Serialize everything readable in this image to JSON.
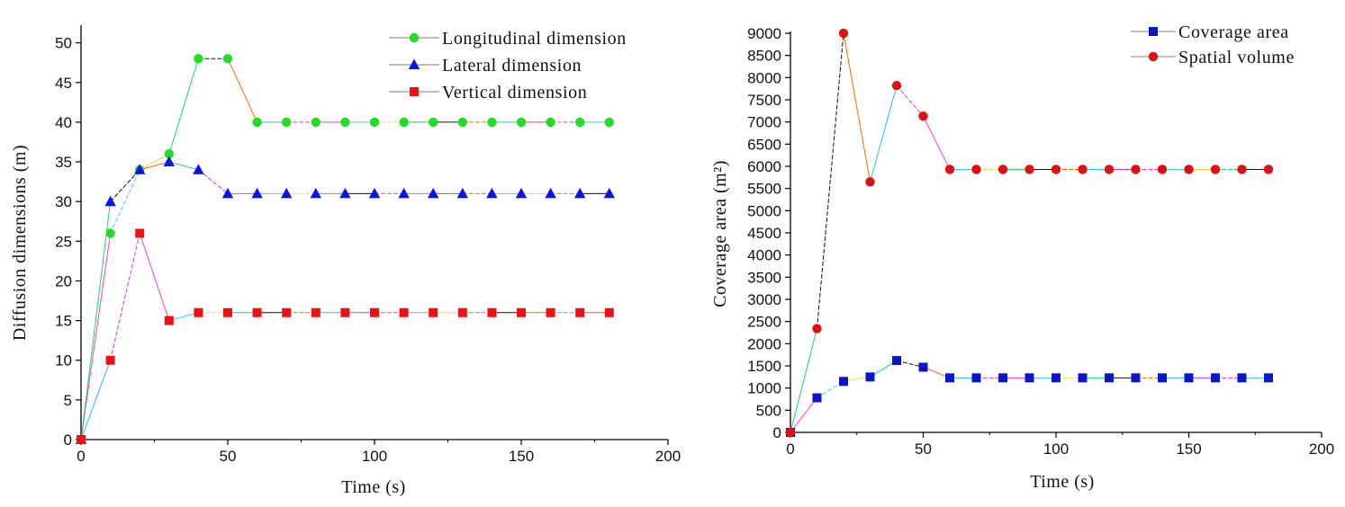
{
  "chart_data": [
    {
      "type": "line",
      "title": "",
      "xlabel": "Time (s)",
      "ylabel": "Diffusion dimensions (m)",
      "xlim": [
        0,
        200
      ],
      "ylim": [
        0,
        52
      ],
      "xticks": [
        0,
        50,
        100,
        150,
        200
      ],
      "yticks": [
        0,
        5,
        10,
        15,
        20,
        25,
        30,
        35,
        40,
        45,
        50
      ],
      "grid": false,
      "legend_position": "top-right",
      "x": [
        0,
        10,
        20,
        30,
        40,
        50,
        60,
        70,
        80,
        90,
        100,
        110,
        120,
        130,
        140,
        150,
        160,
        170,
        180
      ],
      "series": [
        {
          "name": "Longitudinal dimension",
          "marker": "circle",
          "color": "#22dd22",
          "values": [
            0,
            26,
            34,
            36,
            48,
            48,
            40,
            40,
            40,
            40,
            40,
            40,
            40,
            40,
            40,
            40,
            40,
            40,
            40
          ]
        },
        {
          "name": "Lateral dimension",
          "marker": "triangle",
          "color": "#0a14e6",
          "values": [
            0,
            30,
            34,
            35,
            34,
            31,
            31,
            31,
            31,
            31,
            31,
            31,
            31,
            31,
            31,
            31,
            31,
            31,
            31
          ]
        },
        {
          "name": "Vertical dimension",
          "marker": "square",
          "color": "#ee1111",
          "values": [
            0,
            10,
            26,
            15,
            16,
            16,
            16,
            16,
            16,
            16,
            16,
            16,
            16,
            16,
            16,
            16,
            16,
            16,
            16
          ]
        }
      ]
    },
    {
      "type": "line",
      "title": "",
      "xlabel": "Time (s)",
      "ylabel": "Coverage area (m²)",
      "xlim": [
        0,
        200
      ],
      "ylim": [
        0,
        9000
      ],
      "xticks": [
        0,
        50,
        100,
        150,
        200
      ],
      "yticks": [
        0,
        500,
        1000,
        1500,
        2000,
        2500,
        3000,
        3500,
        4000,
        4500,
        5000,
        5500,
        6000,
        6500,
        7000,
        7500,
        8000,
        8500,
        9000
      ],
      "grid": false,
      "legend_position": "top-right",
      "x": [
        0,
        10,
        20,
        30,
        40,
        50,
        60,
        70,
        80,
        90,
        100,
        110,
        120,
        130,
        140,
        150,
        160,
        170,
        180
      ],
      "series": [
        {
          "name": "Coverage area",
          "marker": "square",
          "color": "#0a14c8",
          "values": [
            0,
            780,
            1150,
            1250,
            1620,
            1470,
            1230,
            1230,
            1230,
            1230,
            1230,
            1230,
            1230,
            1230,
            1230,
            1230,
            1230,
            1230,
            1230
          ]
        },
        {
          "name": "Spatial volume",
          "marker": "circle",
          "color": "#dd1111",
          "values": [
            0,
            2340,
            9000,
            5650,
            7820,
            7130,
            5930,
            5930,
            5930,
            5930,
            5930,
            5930,
            5930,
            5930,
            5930,
            5930,
            5930,
            5930,
            5930
          ]
        }
      ]
    }
  ]
}
